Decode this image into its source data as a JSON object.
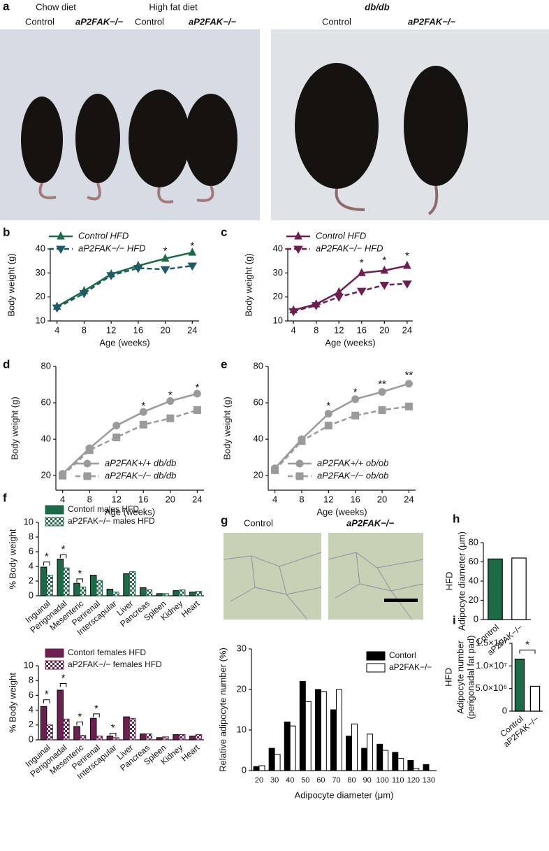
{
  "figure": {
    "panel_a": {
      "label": "a",
      "chow_diet": "Chow diet",
      "high_fat_diet": "High fat diet",
      "control_1": "Control",
      "ko_1": "aP2FAK−/−",
      "control_2": "Control",
      "ko_2": "aP2FAK−/−",
      "dbdb": "db/db",
      "control_3": "Control",
      "ko_3": "aP2FAK−/−"
    },
    "panel_g": {
      "label": "g",
      "control": "Control",
      "ko": "aP2FAK−/−"
    }
  },
  "chart_data": [
    {
      "type": "line",
      "label": "b",
      "xlabel": "Age (weeks)",
      "ylabel": "Body weight (g)",
      "x": [
        4,
        8,
        12,
        16,
        20,
        24
      ],
      "xlim": [
        3,
        25
      ],
      "xticks": [
        4,
        8,
        12,
        16,
        20,
        24
      ],
      "ylim": [
        10,
        40
      ],
      "yticks": [
        10,
        20,
        30,
        40
      ],
      "legend": "upper left",
      "series": [
        {
          "name": "Control HFD",
          "color": "#1b6b47",
          "marker": "triangle",
          "dashed": false,
          "values": [
            16,
            22.5,
            29.5,
            33,
            36,
            38.5
          ]
        },
        {
          "name": "aP2FAK−/− HFD",
          "color": "#1d5a6c",
          "marker": "triangle-down",
          "dashed": true,
          "values": [
            15.5,
            21.5,
            29,
            32,
            31.5,
            33
          ]
        }
      ],
      "annotations": [
        {
          "x": 20,
          "y": 39,
          "text": "*"
        },
        {
          "x": 24,
          "y": 41,
          "text": "*"
        }
      ]
    },
    {
      "type": "line",
      "label": "c",
      "xlabel": "Age (weeks)",
      "ylabel": "Body weight (g)",
      "x": [
        4,
        8,
        12,
        16,
        20,
        24
      ],
      "xlim": [
        3,
        25
      ],
      "xticks": [
        4,
        8,
        12,
        16,
        20,
        24
      ],
      "ylim": [
        10,
        40
      ],
      "yticks": [
        10,
        20,
        30,
        40
      ],
      "legend": "upper left",
      "series": [
        {
          "name": "Control HFD",
          "color": "#6e1f52",
          "marker": "triangle",
          "dashed": false,
          "values": [
            14.5,
            17,
            22,
            30,
            31,
            33
          ]
        },
        {
          "name": "aP2FAK−/− HFD",
          "color": "#6e1f52",
          "marker": "triangle-down",
          "dashed": true,
          "values": [
            14,
            16.5,
            20,
            22.5,
            25,
            25.5
          ]
        }
      ],
      "annotations": [
        {
          "x": 16,
          "y": 34,
          "text": "*"
        },
        {
          "x": 20,
          "y": 35,
          "text": "*"
        },
        {
          "x": 24,
          "y": 37,
          "text": "*"
        }
      ]
    },
    {
      "type": "line",
      "label": "d",
      "xlabel": "Age (weeks)",
      "ylabel": "Body weight (g)",
      "x": [
        4,
        8,
        12,
        16,
        20,
        24
      ],
      "xlim": [
        3,
        25
      ],
      "xticks": [
        4,
        8,
        12,
        16,
        20,
        24
      ],
      "ylim": [
        12,
        80
      ],
      "yticks": [
        20,
        40,
        60,
        80
      ],
      "legend": "lower right",
      "series": [
        {
          "name": "aP2FAK+/+ db/db",
          "color": "#9a9a9a",
          "marker": "circle",
          "dashed": false,
          "values": [
            21,
            35,
            47.5,
            55,
            61,
            65
          ]
        },
        {
          "name": "aP2FAK−/− db/db",
          "color": "#9a9a9a",
          "marker": "square",
          "dashed": true,
          "values": [
            20,
            34,
            41,
            48,
            51.5,
            56
          ]
        }
      ],
      "annotations": [
        {
          "x": 16,
          "y": 58,
          "text": "*"
        },
        {
          "x": 20,
          "y": 64,
          "text": "*"
        },
        {
          "x": 24,
          "y": 68,
          "text": "*"
        }
      ]
    },
    {
      "type": "line",
      "label": "e",
      "xlabel": "Age (weeks)",
      "ylabel": "Body weight (g)",
      "x": [
        4,
        8,
        12,
        16,
        20,
        24
      ],
      "xlim": [
        3,
        25
      ],
      "xticks": [
        4,
        8,
        12,
        16,
        20,
        24
      ],
      "ylim": [
        12,
        80
      ],
      "yticks": [
        20,
        40,
        60,
        80
      ],
      "legend": "lower right",
      "series": [
        {
          "name": "aP2FAK+/+ ob/ob",
          "color": "#9a9a9a",
          "marker": "circle",
          "dashed": false,
          "values": [
            24,
            40,
            54,
            62,
            66,
            70.5
          ]
        },
        {
          "name": "aP2FAK−/− ob/ob",
          "color": "#9a9a9a",
          "marker": "square",
          "dashed": true,
          "values": [
            23,
            39,
            47.5,
            53,
            56,
            58
          ]
        }
      ],
      "annotations": [
        {
          "x": 12,
          "y": 58,
          "text": "*"
        },
        {
          "x": 16,
          "y": 65.5,
          "text": "*"
        },
        {
          "x": 20,
          "y": 70,
          "text": "**"
        },
        {
          "x": 24,
          "y": 75,
          "text": "**"
        }
      ]
    },
    {
      "type": "bar",
      "label": "f",
      "ylabel": "% Body weight",
      "ylim": [
        0,
        10
      ],
      "yticks": [
        0,
        2,
        4,
        6,
        8,
        10
      ],
      "legend": "upper left",
      "rotate_labels": true,
      "categories": [
        "Inguinal",
        "Perigonadal",
        "Mesenteric",
        "Perirenal",
        "Interscapular",
        "Liver",
        "Pancreas",
        "Spleen",
        "Kidney",
        "Heart"
      ],
      "series": [
        {
          "name": "Contorl males HFD",
          "color": "#1b6b47",
          "fill": "solid",
          "values": [
            3.9,
            5.0,
            1.7,
            2.8,
            0.9,
            3.0,
            1.1,
            0.3,
            0.7,
            0.5
          ]
        },
        {
          "name": "aP2FAK−/− males HFD",
          "color": "#1b6b47",
          "fill": "checkered",
          "values": [
            2.8,
            3.8,
            1.2,
            2.1,
            0.5,
            3.3,
            0.8,
            0.3,
            0.8,
            0.6
          ]
        }
      ],
      "annotations": [
        {
          "category": 0,
          "y": 4.6,
          "text": "*"
        },
        {
          "category": 1,
          "y": 5.6,
          "text": "*"
        },
        {
          "category": 2,
          "y": 2.3,
          "text": "*"
        }
      ]
    },
    {
      "type": "bar",
      "ylabel": "% Body weight",
      "ylim": [
        0,
        10
      ],
      "yticks": [
        0,
        2,
        4,
        6,
        8,
        10
      ],
      "legend": "upper left",
      "rotate_labels": true,
      "categories": [
        "Inguinal",
        "Perigonadal",
        "Mesenteric",
        "Perirenal",
        "Interscapular",
        "Liver",
        "Pancreas",
        "Spleen",
        "Kidney",
        "Heart"
      ],
      "series": [
        {
          "name": "Contorl females HFD",
          "color": "#6e1f52",
          "fill": "solid",
          "values": [
            4.5,
            6.7,
            1.8,
            2.9,
            0.5,
            3.1,
            0.8,
            0.3,
            0.7,
            0.5
          ]
        },
        {
          "name": "aP2FAK−/− females HFD",
          "color": "#6e1f52",
          "fill": "checkered",
          "values": [
            2.0,
            2.8,
            0.6,
            0.5,
            0.3,
            2.9,
            0.8,
            0.4,
            0.7,
            0.7
          ]
        }
      ],
      "annotations": [
        {
          "category": 0,
          "y": 5.4,
          "text": "*"
        },
        {
          "category": 1,
          "y": 7.6,
          "text": "*"
        },
        {
          "category": 2,
          "y": 2.4,
          "text": "*"
        },
        {
          "category": 3,
          "y": 3.5,
          "text": "*"
        },
        {
          "category": 4,
          "y": 0.9,
          "text": "*"
        }
      ]
    },
    {
      "type": "bar",
      "xlabel": "Adipocyte diameter (μm)",
      "ylabel": "Relative adipocyte number (%)",
      "ylim": [
        0,
        30
      ],
      "yticks": [
        0,
        10,
        20,
        30
      ],
      "legend": "upper right",
      "rotate_labels": false,
      "categories": [
        "20",
        "30",
        "40",
        "50",
        "60",
        "70",
        "80",
        "90",
        "100",
        "110",
        "120",
        "130"
      ],
      "series": [
        {
          "name": "Contorl",
          "color": "#000000",
          "fill": "solid",
          "values": [
            1,
            5.5,
            12,
            22,
            20,
            15,
            8.5,
            5.5,
            6.5,
            4.5,
            2.5,
            1.5
          ]
        },
        {
          "name": "aP2FAK−/−",
          "color": "#ffffff",
          "fill": "solid",
          "values": [
            1.2,
            4,
            11,
            17,
            19.5,
            20,
            11.5,
            9,
            5,
            3,
            0.5,
            0
          ]
        }
      ]
    },
    {
      "type": "bar",
      "label": "h",
      "side_label": "HFD",
      "ylabel": "Adipocyte diameter (μm)",
      "ylim": [
        0,
        80
      ],
      "yticks": [
        0,
        20,
        40,
        60,
        80
      ],
      "rotate_labels": true,
      "categories": [
        "Control",
        "aP2FAK−/−"
      ],
      "values": [
        63,
        64
      ],
      "colors": [
        "#1b6b47",
        "#ffffff"
      ]
    },
    {
      "type": "bar",
      "label": "i",
      "side_label": "HFD",
      "ylabel": [
        "Adipocyte number",
        "(perigonadal fat pad)"
      ],
      "ylim": [
        0,
        15000000
      ],
      "yticks": [
        0,
        {
          "value": 5000000,
          "label": "5.0×10⁶"
        },
        {
          "value": 10000000,
          "label": "1.0×10⁷"
        },
        {
          "value": 15000000,
          "label": "1.5×10⁷"
        }
      ],
      "rotate_labels": true,
      "categories": [
        "Control",
        "aP2FAK−/−"
      ],
      "values": [
        11500000,
        5500000
      ],
      "colors": [
        "#1b6b47",
        "#ffffff"
      ],
      "annotations": [
        {
          "between": [
            0,
            1
          ],
          "y": 13500000,
          "text": "*"
        }
      ]
    }
  ]
}
